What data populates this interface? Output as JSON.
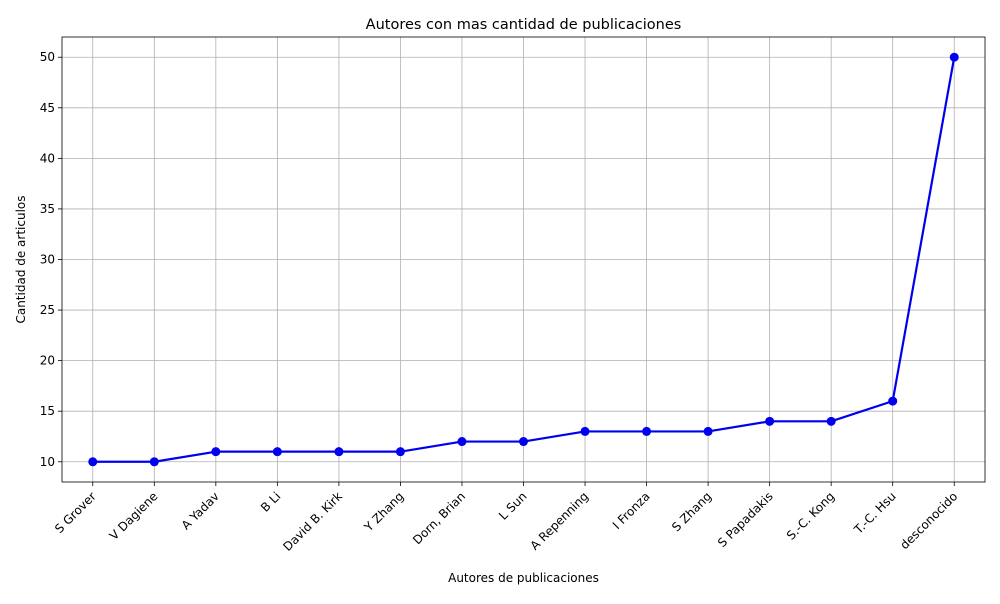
{
  "chart_data": {
    "type": "line",
    "title": "Autores con mas cantidad de publicaciones",
    "xlabel": "Autores de publicaciones",
    "ylabel": "Cantidad de articulos",
    "categories": [
      "S Grover",
      "V Dagiene",
      "A Yadav",
      "B Li",
      "David B. Kirk",
      "Y Zhang",
      "Dorn, Brian",
      "L Sun",
      "A Repenning",
      "I Fronza",
      "S Zhang",
      "S Papadakis",
      "S.-C. Kong",
      "T.-C. Hsu",
      "desconocido"
    ],
    "series": [
      {
        "values": [
          10,
          10,
          11,
          11,
          11,
          11,
          12,
          12,
          13,
          13,
          13,
          14,
          14,
          16,
          50
        ]
      }
    ],
    "yticks": [
      10,
      15,
      20,
      25,
      30,
      35,
      40,
      45,
      50
    ],
    "ylim": [
      8,
      52
    ],
    "grid": true,
    "line_color": "#0000ee",
    "marker": "circle"
  }
}
